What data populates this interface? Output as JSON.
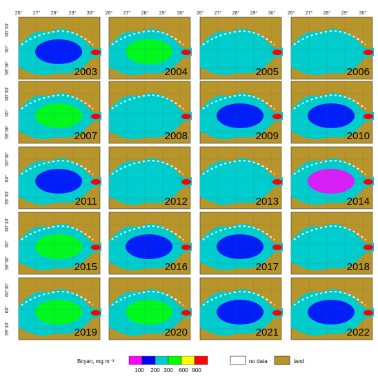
{
  "lon_labels": [
    "26°",
    "27°",
    "28°",
    "29°",
    "30°"
  ],
  "lat_labels": [
    "60°30'",
    "60°",
    "59°30'"
  ],
  "years": [
    "2003",
    "2004",
    "2005",
    "2006",
    "2007",
    "2008",
    "2009",
    "2010",
    "2011",
    "2012",
    "2013",
    "2014",
    "2015",
    "2016",
    "2017",
    "2018",
    "2019",
    "2020",
    "2021",
    "2022"
  ],
  "dominant_class": [
    "200",
    "600",
    "300",
    "300",
    "600",
    "300",
    "200",
    "200",
    "200",
    "300",
    "300",
    "100",
    "600",
    "200",
    "200",
    "300",
    "600",
    "600",
    "200",
    "200"
  ],
  "legend": {
    "title": "Bcyan, mg m⁻³",
    "colors": [
      "#ff00ff",
      "#0000ff",
      "#00cccc",
      "#00ff00",
      "#ffff00",
      "#ff0000"
    ],
    "labels": [
      "100",
      "200",
      "300",
      "600",
      "900"
    ],
    "no_data": "no data",
    "land": "land",
    "no_data_color": "#ffffff",
    "land_color": "#b8952a"
  }
}
